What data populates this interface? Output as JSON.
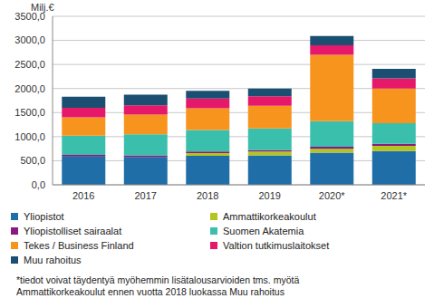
{
  "chart_data": {
    "type": "bar",
    "stacked": true,
    "grid": true,
    "legend": "bottom",
    "y_label": "Milj.€",
    "categories": [
      "2016",
      "2017",
      "2018",
      "2019",
      "2020*",
      "2021*"
    ],
    "ylim": [
      0,
      3500
    ],
    "yticks": [
      {
        "value": 0,
        "label": "0,0"
      },
      {
        "value": 500,
        "label": "500,0"
      },
      {
        "value": 1000,
        "label": "1000,0"
      },
      {
        "value": 1500,
        "label": "1500,0"
      },
      {
        "value": 2000,
        "label": "2000,0"
      },
      {
        "value": 2500,
        "label": "2500,0"
      },
      {
        "value": 3000,
        "label": "3000,0"
      },
      {
        "value": 3500,
        "label": "3500,0"
      }
    ],
    "series": [
      {
        "name": "Yliopistot",
        "color": "#1f6ea8",
        "values": [
          590,
          580,
          600,
          610,
          670,
          700
        ]
      },
      {
        "name": "Ammattikorkeakoulut",
        "color": "#b3c520",
        "values": [
          0,
          0,
          60,
          80,
          80,
          110
        ]
      },
      {
        "name": "Yliopistolliset sairaalat",
        "color": "#8a1a7f",
        "values": [
          30,
          30,
          30,
          30,
          40,
          40
        ]
      },
      {
        "name": "Suomen Akatemia",
        "color": "#3bbfad",
        "values": [
          400,
          440,
          450,
          450,
          530,
          430
        ]
      },
      {
        "name": "Tekes / Business Finland",
        "color": "#f7941d",
        "values": [
          380,
          410,
          450,
          470,
          1380,
          720
        ]
      },
      {
        "name": "Valtion tutkimuslaitokset",
        "color": "#e5186a",
        "values": [
          200,
          190,
          200,
          200,
          200,
          210
        ]
      },
      {
        "name": "Muu rahoitus",
        "color": "#1b4f72",
        "values": [
          230,
          220,
          160,
          160,
          190,
          200
        ]
      }
    ],
    "annotations": [
      "*tiedot voivat täydentyä myöhemmin lisätalousarvioiden tms. myötä",
      "Ammattikorkeakoulut ennen vuotta 2018 luokassa Muu rahoitus"
    ]
  }
}
